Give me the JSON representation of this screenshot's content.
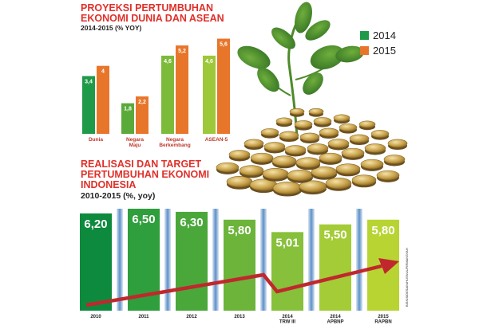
{
  "chart_data": [
    {
      "type": "bar",
      "title": "PROYEKSI PERTUMBUHAN EKONOMI DUNIA DAN ASEAN",
      "title_lines": [
        "PROYEKSI PERTUMBUHAN",
        "EKONOMI DUNIA DAN ASEAN"
      ],
      "subtitle": "2014-2015 (% YOY)",
      "categories": [
        "Dunia",
        "Negara Maju",
        "Negara Berkembang",
        "ASEAN-5"
      ],
      "category_lines": [
        [
          "Dunia"
        ],
        [
          "Negara",
          "Maju"
        ],
        [
          "Negara",
          "Berkembang"
        ],
        [
          "ASEAN-5"
        ]
      ],
      "series": [
        {
          "name": "2014",
          "values": [
            3.4,
            1.8,
            4.6,
            4.6
          ],
          "labels": [
            "3,4",
            "1,8",
            "4,6",
            "4,6"
          ]
        },
        {
          "name": "2015",
          "values": [
            4,
            2.2,
            5.2,
            5.6
          ],
          "labels": [
            "4",
            "2,2",
            "5,2",
            "5,6"
          ]
        }
      ],
      "legend": {
        "position": "right",
        "entries": [
          "2014",
          "2015"
        ]
      },
      "colors": {
        "2014": [
          "#1f9a48",
          "#5aaa3a",
          "#7cba3a",
          "#9cc83a"
        ],
        "2015": "#e8762a"
      },
      "ylim": [
        0,
        6
      ],
      "grid": false
    },
    {
      "type": "bar",
      "title": "REALISASI DAN TARGET PERTUMBUHAN EKONOMI INDONESIA",
      "title_lines": [
        "REALISASI DAN TARGET",
        "PERTUMBUHAN EKONOMI",
        "INDONESIA"
      ],
      "subtitle": "2010-2015 (%, yoy)",
      "categories": [
        "2010",
        "2011",
        "2012",
        "2013",
        "2014 TRW III",
        "2014 APBNP",
        "2015 RAPBN"
      ],
      "category_lines": [
        [
          "2010"
        ],
        [
          "2011"
        ],
        [
          "2012"
        ],
        [
          "2013"
        ],
        [
          "2014",
          "TRW III"
        ],
        [
          "2014",
          "APBNP"
        ],
        [
          "2015",
          "RAPBN"
        ]
      ],
      "values": [
        6.2,
        6.5,
        6.3,
        5.8,
        5.01,
        5.5,
        5.8
      ],
      "labels": [
        "6,20",
        "6,50",
        "6,30",
        "5,80",
        "5,01",
        "5,50",
        "5,80"
      ],
      "colors": [
        "#0e8a3e",
        "#2f9e3c",
        "#4aa83a",
        "#6cb43a",
        "#87c03a",
        "#a3cc36",
        "#b8d432"
      ],
      "arrow_color": "#c0282d",
      "ylim": [
        0,
        6.5
      ],
      "grid": false
    }
  ],
  "credit": "BISNIS/DESAIN/HUSNUL/FIRMANSYAH"
}
